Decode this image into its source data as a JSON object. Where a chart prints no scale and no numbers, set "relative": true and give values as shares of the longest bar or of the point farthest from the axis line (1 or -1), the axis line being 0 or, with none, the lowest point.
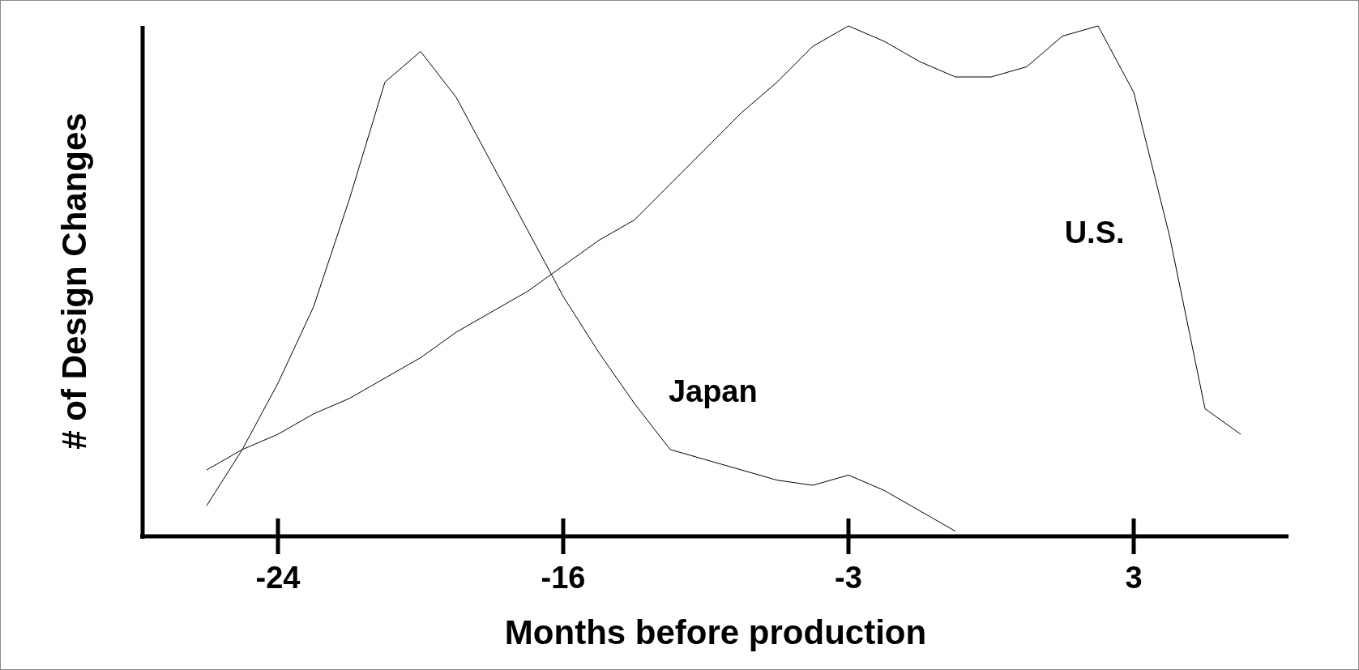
{
  "chart_data": {
    "type": "line",
    "relative": true,
    "xlabel": "Months before production",
    "ylabel": "# of Design Changes",
    "grid": false,
    "marker": "none",
    "line_style": "solid",
    "categories": [
      null,
      null,
      "-24",
      null,
      null,
      null,
      null,
      null,
      null,
      null,
      "-16",
      null,
      null,
      null,
      null,
      null,
      null,
      null,
      "-3",
      null,
      null,
      null,
      null,
      null,
      null,
      null,
      "3",
      null,
      null,
      null
    ],
    "series": [
      {
        "name": "Japan",
        "color": "#000000",
        "values": [
          0.06,
          0.17,
          0.3,
          0.45,
          0.66,
          0.89,
          0.95,
          0.86,
          0.73,
          0.6,
          0.47,
          0.36,
          0.26,
          0.17,
          0.15,
          0.13,
          0.11,
          0.1,
          0.12,
          0.09,
          0.05,
          0.01,
          null,
          null,
          null,
          null,
          null,
          null,
          null,
          null
        ]
      },
      {
        "name": "U.S.",
        "color": "#000000",
        "values": [
          0.13,
          0.17,
          0.2,
          0.24,
          0.27,
          0.31,
          0.35,
          0.4,
          0.44,
          0.48,
          0.53,
          0.58,
          0.62,
          0.69,
          0.76,
          0.83,
          0.89,
          0.96,
          1.0,
          0.97,
          0.93,
          0.9,
          0.9,
          0.92,
          0.98,
          1.0,
          0.87,
          0.59,
          0.25,
          0.2
        ]
      }
    ]
  }
}
